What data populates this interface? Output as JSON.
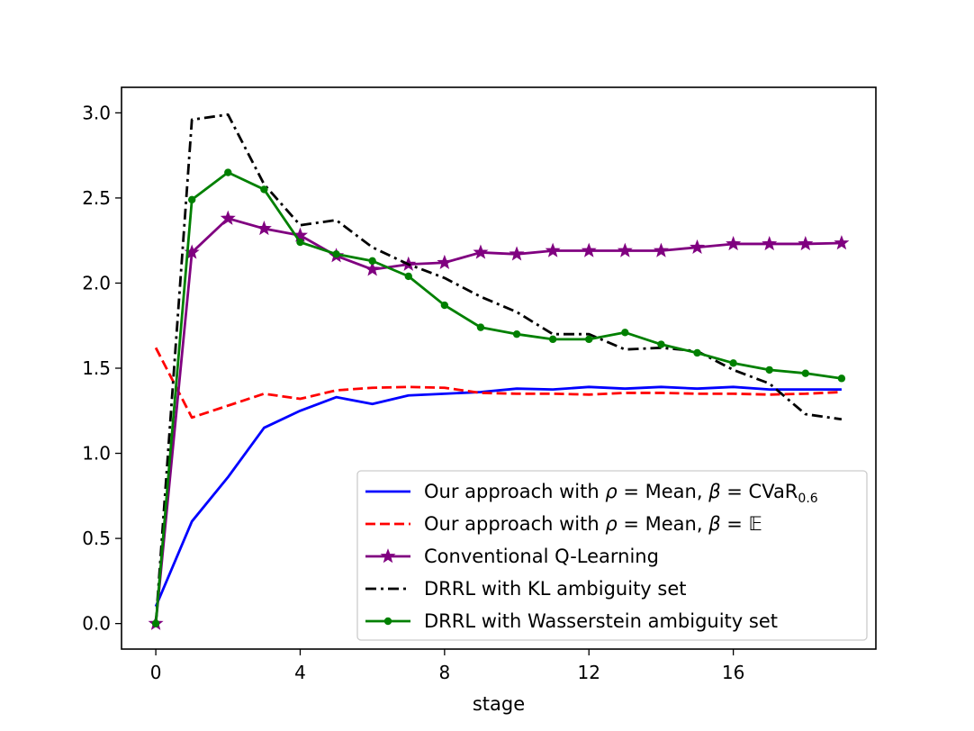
{
  "chart_data": {
    "type": "line",
    "xlabel": "stage",
    "ylabel": "",
    "xlim": [
      -0.95,
      19.95
    ],
    "ylim": [
      -0.15,
      3.15
    ],
    "xticks": [
      0,
      4,
      8,
      12,
      16
    ],
    "yticks": [
      0.0,
      0.5,
      1.0,
      1.5,
      2.0,
      2.5,
      3.0
    ],
    "xtick_labels": [
      "0",
      "4",
      "8",
      "12",
      "16"
    ],
    "ytick_labels": [
      "0.0",
      "0.5",
      "1.0",
      "1.5",
      "2.0",
      "2.5",
      "3.0"
    ],
    "grid": false,
    "legend_position": "lower-right",
    "x": [
      0,
      1,
      2,
      3,
      4,
      5,
      6,
      7,
      8,
      9,
      10,
      11,
      12,
      13,
      14,
      15,
      16,
      17,
      18,
      19
    ],
    "series": [
      {
        "name": "Our approach with ρ = Mean, β = CVaR0.6",
        "legend": {
          "main": "Our approach with ",
          "rho": "ρ",
          "eq1": " = Mean, ",
          "beta": "β",
          "eq2": " = CVaR",
          "sub": "0.6"
        },
        "color": "#0000ff",
        "style": "solid",
        "marker": "none",
        "values": [
          0.1,
          0.6,
          0.86,
          1.15,
          1.25,
          1.33,
          1.29,
          1.34,
          1.35,
          1.36,
          1.38,
          1.375,
          1.39,
          1.38,
          1.39,
          1.38,
          1.39,
          1.375,
          1.375,
          1.375
        ]
      },
      {
        "name": "Our approach with ρ = Mean, β = 𝔼",
        "legend": {
          "main": "Our approach with ",
          "rho": "ρ",
          "eq1": " = Mean, ",
          "beta": "β",
          "eq2": " = 𝔼"
        },
        "color": "#ff0000",
        "style": "dashed",
        "marker": "none",
        "values": [
          1.62,
          1.21,
          1.28,
          1.35,
          1.32,
          1.37,
          1.385,
          1.39,
          1.385,
          1.355,
          1.35,
          1.35,
          1.345,
          1.355,
          1.355,
          1.35,
          1.35,
          1.345,
          1.35,
          1.36
        ]
      },
      {
        "name": "Conventional Q-Learning",
        "color": "#800080",
        "style": "solid",
        "marker": "star",
        "values": [
          0.0,
          2.18,
          2.38,
          2.32,
          2.28,
          2.16,
          2.08,
          2.11,
          2.12,
          2.18,
          2.17,
          2.19,
          2.19,
          2.19,
          2.19,
          2.21,
          2.23,
          2.23,
          2.23,
          2.235
        ]
      },
      {
        "name": "DRRL with KL ambiguity set",
        "color": "#000000",
        "style": "dashdot",
        "marker": "none",
        "values": [
          0.0,
          2.96,
          2.99,
          2.58,
          2.34,
          2.37,
          2.21,
          2.11,
          2.03,
          1.92,
          1.83,
          1.7,
          1.7,
          1.61,
          1.62,
          1.6,
          1.49,
          1.41,
          1.23,
          1.2
        ]
      },
      {
        "name": "DRRL with Wasserstein ambiguity set",
        "color": "#008000",
        "style": "solid",
        "marker": "dot",
        "values": [
          0.0,
          2.49,
          2.65,
          2.55,
          2.24,
          2.17,
          2.13,
          2.04,
          1.87,
          1.74,
          1.7,
          1.67,
          1.67,
          1.71,
          1.64,
          1.59,
          1.53,
          1.49,
          1.47,
          1.44
        ]
      }
    ]
  }
}
